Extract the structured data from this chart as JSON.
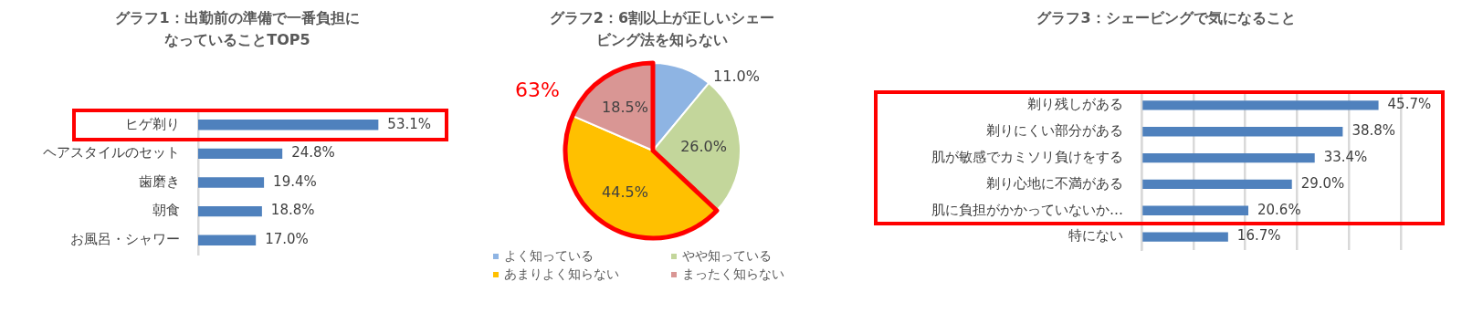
{
  "chart_data": [
    {
      "type": "bar",
      "orientation": "horizontal",
      "title": "グラフ1：出勤前の準備で一番負担になっていることTOP5",
      "categories": [
        "ヒゲ剃り",
        "ヘアスタイルのセット",
        "歯磨き",
        "朝食",
        "お風呂・シャワー"
      ],
      "values": [
        53.1,
        24.8,
        19.4,
        18.8,
        17.0
      ],
      "color": "#4f81bd",
      "value_labels": [
        "53.1%",
        "24.8%",
        "19.4%",
        "18.8%",
        "17.0%"
      ],
      "tick_labels": "y"
    },
    {
      "type": "pie",
      "title": "グラフ2：6割以上が正しいシェービング法を知らない",
      "categories": [
        "よく知っている",
        "やや知っている",
        "あまりよく知らない",
        "まったく知らない"
      ],
      "values": [
        11.0,
        26.0,
        44.5,
        18.5
      ],
      "colors": [
        "#8eb4e3",
        "#c3d69b",
        "#ffc000",
        "#d99694"
      ],
      "value_labels": [
        "11.0%",
        "26.0%",
        "44.5%",
        "18.5%"
      ],
      "legend": "bottom",
      "annotations": [
        "63%"
      ]
    },
    {
      "type": "bar",
      "orientation": "horizontal",
      "title": "グラフ3：シェービングで気になること",
      "categories": [
        "剃り残しがある",
        "剃りにくい部分がある",
        "肌が敏感でカミソリ負けをする",
        "剃り心地に不満がある",
        "肌に負担がかかっていないか…",
        "特にない"
      ],
      "values": [
        45.7,
        38.8,
        33.4,
        29.0,
        20.6,
        16.7
      ],
      "color": "#4f81bd",
      "value_labels": [
        "45.7%",
        "38.8%",
        "33.4%",
        "29.0%",
        "20.6%",
        "16.7%"
      ],
      "xlim": [
        0,
        50
      ],
      "xticks": [
        {
          "value": 0,
          "label": null
        },
        {
          "value": 10,
          "label": null
        },
        {
          "value": 20,
          "label": null
        },
        {
          "value": 30,
          "label": null
        },
        {
          "value": 40,
          "label": null
        },
        {
          "value": 50,
          "label": null
        }
      ],
      "grid": "x",
      "tick_labels": "y"
    }
  ]
}
